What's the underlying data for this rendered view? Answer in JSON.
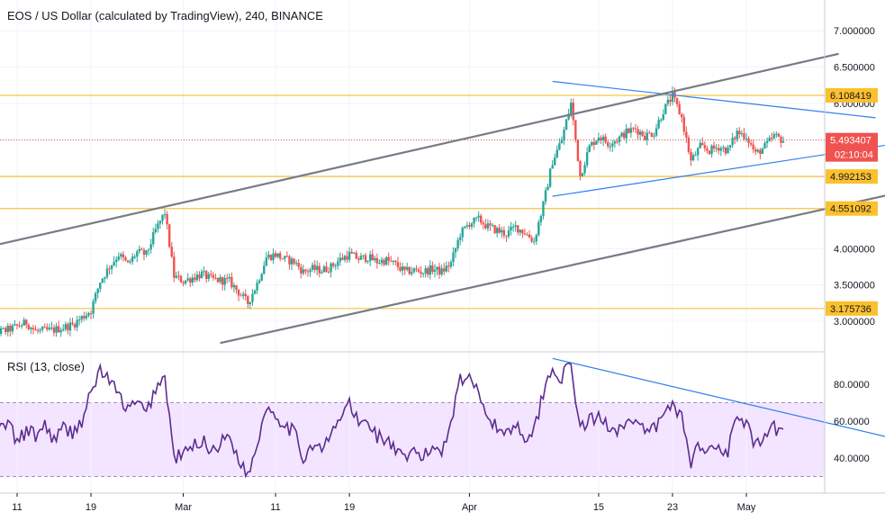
{
  "header": {
    "title": "EOS / US Dollar (calculated by TradingView), 240, BINANCE"
  },
  "rsi_header": {
    "title": "RSI (13, close)"
  },
  "colors": {
    "up": "#26a69a",
    "down": "#ef5350",
    "hline": "#f5c342",
    "hline_badge": "#fbc02d",
    "last_price": "#ef5350",
    "channel": "#787b86",
    "triangle": "#2f80ed",
    "rsi_line": "#5c2d91",
    "rsi_band_fill": "#f3e5ff",
    "rsi_band_line": "#a58bc4",
    "grid": "#f0f3fa"
  },
  "chart_data": [
    {
      "type": "candlestick",
      "title": "EOS / US Dollar (calculated by TradingView), 240, BINANCE",
      "y_axis_ticks": [
        "7.000000",
        "6.500000",
        "6.000000",
        "5.500000",
        "5.000000",
        "4.000000",
        "3.500000",
        "3.000000"
      ],
      "ylim": [
        2.65,
        7.3
      ],
      "x_axis_ticks": [
        "11",
        "19",
        "Mar",
        "11",
        "19",
        "Apr",
        "15",
        "23",
        "May"
      ],
      "x_tick_dates": [
        "2019-02-11",
        "2019-02-19",
        "2019-03-01",
        "2019-03-11",
        "2019-03-19",
        "2019-04-01",
        "2019-04-15",
        "2019-04-23",
        "2019-05-01"
      ],
      "horizontal_levels": [
        {
          "value": 6.108419,
          "label": "6.108419"
        },
        {
          "value": 4.992153,
          "label": "4.992153"
        },
        {
          "value": 4.551092,
          "label": "4.551092"
        },
        {
          "value": 3.175736,
          "label": "3.175736"
        }
      ],
      "last_price": {
        "value": 5.493407,
        "label": "5.493407",
        "countdown": "02:10:04"
      },
      "price_path": [
        [
          "2019-02-07",
          2.8
        ],
        [
          "2019-02-10",
          2.88
        ],
        [
          "2019-02-12",
          2.98
        ],
        [
          "2019-02-13",
          2.86
        ],
        [
          "2019-02-15",
          2.88
        ],
        [
          "2019-02-17",
          2.95
        ],
        [
          "2019-02-19",
          3.15
        ],
        [
          "2019-02-20",
          3.55
        ],
        [
          "2019-02-21",
          3.75
        ],
        [
          "2019-02-22",
          3.92
        ],
        [
          "2019-02-23",
          3.78
        ],
        [
          "2019-02-24",
          3.95
        ],
        [
          "2019-02-25",
          3.92
        ],
        [
          "2019-02-26",
          4.25
        ],
        [
          "2019-02-27",
          4.5
        ],
        [
          "2019-02-28",
          3.62
        ],
        [
          "2019-03-01",
          3.55
        ],
        [
          "2019-03-02",
          3.6
        ],
        [
          "2019-03-03",
          3.65
        ],
        [
          "2019-03-04",
          3.58
        ],
        [
          "2019-03-06",
          3.55
        ],
        [
          "2019-03-07",
          3.4
        ],
        [
          "2019-03-08",
          3.25
        ],
        [
          "2019-03-09",
          3.52
        ],
        [
          "2019-03-10",
          3.88
        ],
        [
          "2019-03-11",
          3.92
        ],
        [
          "2019-03-12",
          3.85
        ],
        [
          "2019-03-13",
          3.82
        ],
        [
          "2019-03-14",
          3.68
        ],
        [
          "2019-03-15",
          3.72
        ],
        [
          "2019-03-16",
          3.7
        ],
        [
          "2019-03-17",
          3.75
        ],
        [
          "2019-03-18",
          3.85
        ],
        [
          "2019-03-19",
          3.92
        ],
        [
          "2019-03-20",
          3.86
        ],
        [
          "2019-03-21",
          3.88
        ],
        [
          "2019-03-22",
          3.82
        ],
        [
          "2019-03-23",
          3.84
        ],
        [
          "2019-03-24",
          3.78
        ],
        [
          "2019-03-25",
          3.68
        ],
        [
          "2019-03-26",
          3.7
        ],
        [
          "2019-03-27",
          3.68
        ],
        [
          "2019-03-28",
          3.72
        ],
        [
          "2019-03-29",
          3.68
        ],
        [
          "2019-03-30",
          3.8
        ],
        [
          "2019-03-31",
          4.2
        ],
        [
          "2019-04-01",
          4.35
        ],
        [
          "2019-04-02",
          4.4
        ],
        [
          "2019-04-03",
          4.3
        ],
        [
          "2019-04-04",
          4.25
        ],
        [
          "2019-04-05",
          4.2
        ],
        [
          "2019-04-06",
          4.3
        ],
        [
          "2019-04-07",
          4.22
        ],
        [
          "2019-04-08",
          4.1
        ],
        [
          "2019-04-09",
          4.6
        ],
        [
          "2019-04-10",
          5.2
        ],
        [
          "2019-04-11",
          5.5
        ],
        [
          "2019-04-12",
          6.0
        ],
        [
          "2019-04-13",
          5.0
        ],
        [
          "2019-04-14",
          5.4
        ],
        [
          "2019-04-15",
          5.55
        ],
        [
          "2019-04-16",
          5.45
        ],
        [
          "2019-04-17",
          5.5
        ],
        [
          "2019-04-18",
          5.6
        ],
        [
          "2019-04-19",
          5.65
        ],
        [
          "2019-04-20",
          5.55
        ],
        [
          "2019-04-21",
          5.6
        ],
        [
          "2019-04-22",
          5.9
        ],
        [
          "2019-04-23",
          6.1
        ],
        [
          "2019-04-24",
          5.8
        ],
        [
          "2019-04-25",
          5.2
        ],
        [
          "2019-04-26",
          5.4
        ],
        [
          "2019-04-27",
          5.35
        ],
        [
          "2019-04-28",
          5.4
        ],
        [
          "2019-04-29",
          5.35
        ],
        [
          "2019-04-30",
          5.6
        ],
        [
          "2019-05-01",
          5.55
        ],
        [
          "2019-05-02",
          5.3
        ],
        [
          "2019-05-03",
          5.4
        ],
        [
          "2019-05-04",
          5.55
        ],
        [
          "2019-05-05",
          5.49
        ]
      ]
    },
    {
      "type": "line",
      "title": "RSI (13, close)",
      "y_axis_ticks": [
        "80.0000",
        "60.0000",
        "40.0000"
      ],
      "ylim": [
        22,
        96
      ],
      "band": {
        "upper": 70,
        "lower": 30
      },
      "rsi_path": [
        [
          "2019-02-07",
          62
        ],
        [
          "2019-02-08",
          70
        ],
        [
          "2019-02-09",
          55
        ],
        [
          "2019-02-10",
          60
        ],
        [
          "2019-02-11",
          48
        ],
        [
          "2019-02-12",
          55
        ],
        [
          "2019-02-13",
          52
        ],
        [
          "2019-02-14",
          58
        ],
        [
          "2019-02-15",
          50
        ],
        [
          "2019-02-16",
          56
        ],
        [
          "2019-02-17",
          54
        ],
        [
          "2019-02-18",
          60
        ],
        [
          "2019-02-19",
          75
        ],
        [
          "2019-02-20",
          88
        ],
        [
          "2019-02-21",
          82
        ],
        [
          "2019-02-22",
          74
        ],
        [
          "2019-02-23",
          66
        ],
        [
          "2019-02-24",
          70
        ],
        [
          "2019-02-25",
          64
        ],
        [
          "2019-02-26",
          78
        ],
        [
          "2019-02-27",
          84
        ],
        [
          "2019-02-28",
          40
        ],
        [
          "2019-03-01",
          42
        ],
        [
          "2019-03-02",
          46
        ],
        [
          "2019-03-03",
          50
        ],
        [
          "2019-03-04",
          44
        ],
        [
          "2019-03-05",
          48
        ],
        [
          "2019-03-06",
          52
        ],
        [
          "2019-03-07",
          40
        ],
        [
          "2019-03-08",
          30
        ],
        [
          "2019-03-09",
          48
        ],
        [
          "2019-03-10",
          68
        ],
        [
          "2019-03-11",
          64
        ],
        [
          "2019-03-12",
          58
        ],
        [
          "2019-03-13",
          54
        ],
        [
          "2019-03-14",
          40
        ],
        [
          "2019-03-15",
          48
        ],
        [
          "2019-03-16",
          44
        ],
        [
          "2019-03-17",
          52
        ],
        [
          "2019-03-18",
          62
        ],
        [
          "2019-03-19",
          70
        ],
        [
          "2019-03-20",
          58
        ],
        [
          "2019-03-21",
          60
        ],
        [
          "2019-03-22",
          52
        ],
        [
          "2019-03-23",
          50
        ],
        [
          "2019-03-24",
          44
        ],
        [
          "2019-03-25",
          38
        ],
        [
          "2019-03-26",
          44
        ],
        [
          "2019-03-27",
          40
        ],
        [
          "2019-03-28",
          46
        ],
        [
          "2019-03-29",
          44
        ],
        [
          "2019-03-30",
          60
        ],
        [
          "2019-03-31",
          84
        ],
        [
          "2019-04-01",
          82
        ],
        [
          "2019-04-02",
          78
        ],
        [
          "2019-04-03",
          62
        ],
        [
          "2019-04-04",
          56
        ],
        [
          "2019-04-05",
          54
        ],
        [
          "2019-04-06",
          58
        ],
        [
          "2019-04-07",
          52
        ],
        [
          "2019-04-08",
          54
        ],
        [
          "2019-04-09",
          76
        ],
        [
          "2019-04-10",
          88
        ],
        [
          "2019-04-11",
          84
        ],
        [
          "2019-04-12",
          90
        ],
        [
          "2019-04-13",
          56
        ],
        [
          "2019-04-14",
          60
        ],
        [
          "2019-04-15",
          62
        ],
        [
          "2019-04-16",
          58
        ],
        [
          "2019-04-17",
          56
        ],
        [
          "2019-04-18",
          60
        ],
        [
          "2019-04-19",
          58
        ],
        [
          "2019-04-20",
          54
        ],
        [
          "2019-04-21",
          56
        ],
        [
          "2019-04-22",
          62
        ],
        [
          "2019-04-23",
          70
        ],
        [
          "2019-04-24",
          62
        ],
        [
          "2019-04-25",
          38
        ],
        [
          "2019-04-26",
          48
        ],
        [
          "2019-04-27",
          44
        ],
        [
          "2019-04-28",
          46
        ],
        [
          "2019-04-29",
          44
        ],
        [
          "2019-04-30",
          62
        ],
        [
          "2019-05-01",
          58
        ],
        [
          "2019-05-02",
          46
        ],
        [
          "2019-05-03",
          50
        ],
        [
          "2019-05-04",
          56
        ],
        [
          "2019-05-05",
          53
        ]
      ]
    }
  ],
  "drawings": {
    "channel_upper": [
      [
        "2019-02-07",
        4.0
      ],
      [
        "2019-05-11",
        6.68
      ]
    ],
    "channel_lower": [
      [
        "2019-03-05",
        2.7
      ],
      [
        "2019-06-10",
        5.43
      ]
    ],
    "triangle_upper": [
      [
        "2019-04-10",
        6.3
      ],
      [
        "2019-05-15",
        5.8
      ]
    ],
    "triangle_lower": [
      [
        "2019-04-10",
        4.72
      ],
      [
        "2019-05-16",
        5.42
      ]
    ],
    "rsi_trend": [
      [
        "2019-04-10",
        94
      ],
      [
        "2019-05-26",
        40
      ]
    ]
  }
}
